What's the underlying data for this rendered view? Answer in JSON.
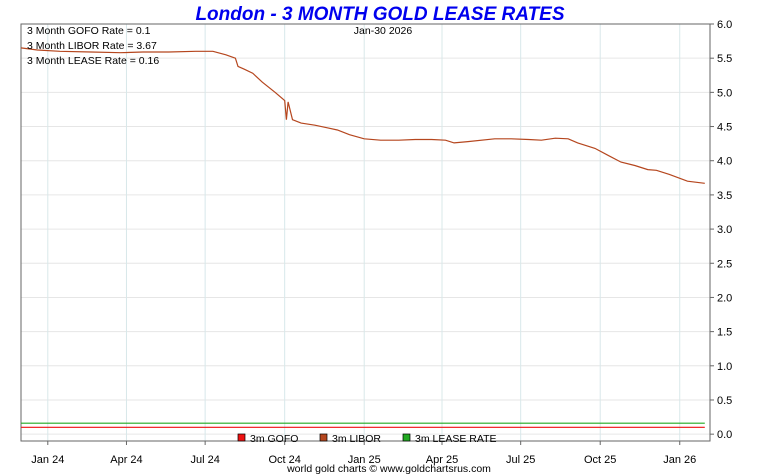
{
  "chart_data": {
    "type": "line",
    "title": "London - 3 MONTH GOLD LEASE RATES",
    "date_label": "Jan-30  2026",
    "annotations": [
      "3 Month GOFO Rate = 0.1",
      "3 Month LIBOR Rate = 3.67",
      "3 Month LEASE Rate = 0.16"
    ],
    "x_ticks": [
      "Jan 24",
      "Apr 24",
      "Jul 24",
      "Oct 24",
      "Jan 25",
      "Apr 25",
      "Jul 25",
      "Oct 25",
      "Jan 26"
    ],
    "x_range": [
      "2023-12-01",
      "2026-02-05"
    ],
    "y_ticks": [
      "0.0",
      "0.5",
      "1.0",
      "1.5",
      "2.0",
      "2.5",
      "3.0",
      "3.5",
      "4.0",
      "4.5",
      "5.0",
      "5.5",
      "6.0"
    ],
    "ylim": [
      -0.1,
      6.0
    ],
    "grid": true,
    "legend_position": "bottom-center",
    "series": [
      {
        "name": "3m GOFO",
        "color": "#ee1111",
        "x": [
          "2023-12-01",
          "2026-01-30"
        ],
        "values": [
          0.1,
          0.1
        ]
      },
      {
        "name": "3m LIBOR",
        "color": "#b5461e",
        "x": [
          "2023-12-01",
          "2023-12-20",
          "2024-01-15",
          "2024-02-20",
          "2024-03-25",
          "2024-04-20",
          "2024-05-20",
          "2024-06-20",
          "2024-07-10",
          "2024-07-25",
          "2024-08-05",
          "2024-08-08",
          "2024-08-15",
          "2024-08-25",
          "2024-09-05",
          "2024-09-20",
          "2024-10-01",
          "2024-10-03",
          "2024-10-05",
          "2024-10-10",
          "2024-10-20",
          "2024-11-05",
          "2024-11-20",
          "2024-12-01",
          "2024-12-15",
          "2025-01-01",
          "2025-01-20",
          "2025-02-10",
          "2025-03-01",
          "2025-03-20",
          "2025-04-05",
          "2025-04-15",
          "2025-05-01",
          "2025-06-01",
          "2025-06-20",
          "2025-07-10",
          "2025-07-25",
          "2025-08-10",
          "2025-08-25",
          "2025-09-05",
          "2025-09-15",
          "2025-09-25",
          "2025-10-10",
          "2025-10-25",
          "2025-11-10",
          "2025-11-25",
          "2025-12-05",
          "2025-12-20",
          "2026-01-10",
          "2026-01-30"
        ],
        "values": [
          5.65,
          5.62,
          5.6,
          5.59,
          5.58,
          5.59,
          5.59,
          5.6,
          5.6,
          5.55,
          5.5,
          5.38,
          5.34,
          5.28,
          5.15,
          5.0,
          4.88,
          4.6,
          4.86,
          4.6,
          4.55,
          4.52,
          4.48,
          4.45,
          4.38,
          4.32,
          4.3,
          4.3,
          4.31,
          4.31,
          4.3,
          4.26,
          4.28,
          4.32,
          4.32,
          4.31,
          4.3,
          4.33,
          4.32,
          4.26,
          4.22,
          4.18,
          4.08,
          3.98,
          3.93,
          3.87,
          3.86,
          3.8,
          3.7,
          3.67
        ]
      },
      {
        "name": "3m LEASE RATE",
        "color": "#22aa22",
        "x": [
          "2023-12-01",
          "2026-01-30"
        ],
        "values": [
          0.16,
          0.16
        ]
      }
    ]
  },
  "footer": "world gold charts © www.goldchartsrus.com"
}
